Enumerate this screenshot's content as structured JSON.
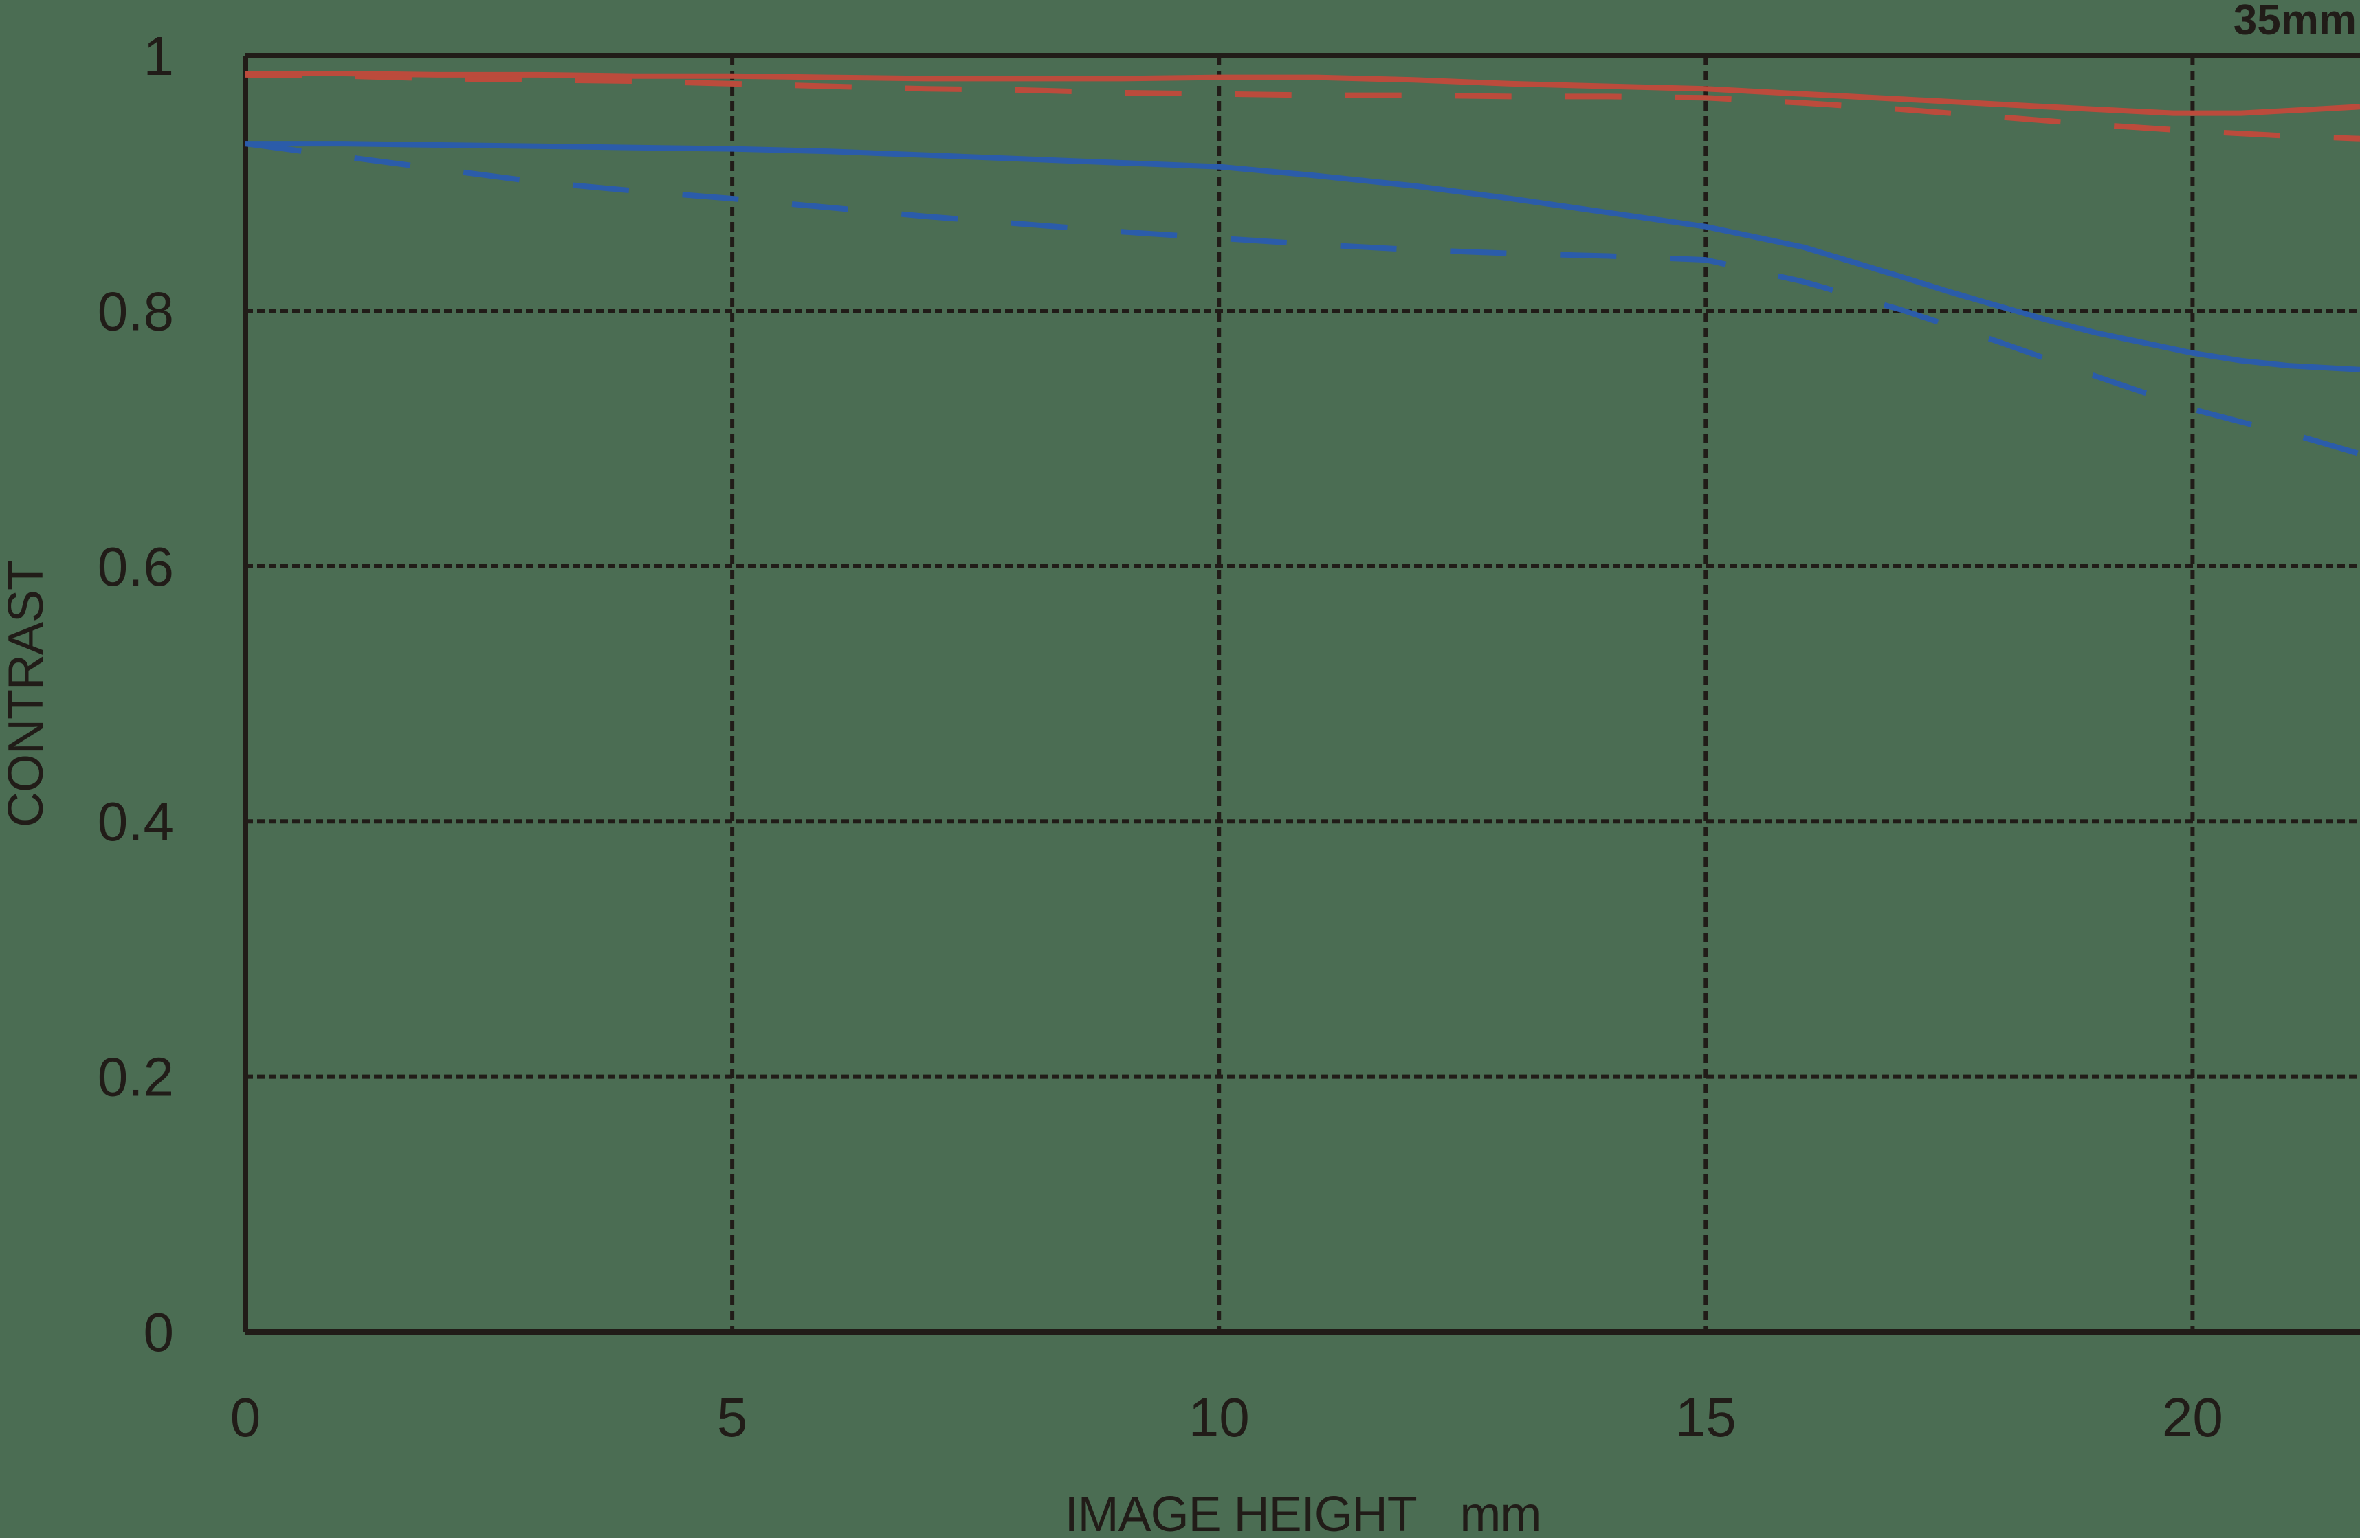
{
  "title": "35mm",
  "colors": {
    "background": "#4b6d53",
    "ink": "#211c18",
    "red": "#bc4b3c",
    "blue": "#2b5caa"
  },
  "chart_data": {
    "type": "line",
    "title": "35mm",
    "xlabel": "IMAGE HEIGHT",
    "xlabel_unit": "mm",
    "ylabel": "CONTRAST",
    "xlim": [
      0,
      21.72
    ],
    "ylim": [
      0,
      1
    ],
    "x_ticks": [
      0,
      5,
      10,
      15,
      20
    ],
    "x_tick_labels": [
      "0",
      "5",
      "10",
      "15",
      "20"
    ],
    "y_ticks": [
      0,
      0.2,
      0.4,
      0.6,
      0.8,
      1
    ],
    "y_tick_labels": [
      "0",
      "0.2",
      "0.4",
      "0.6",
      "0.8",
      "1"
    ],
    "grid": true,
    "legend_position": "none",
    "series": [
      {
        "name": "red-solid",
        "color": "#bc4b3c",
        "style": "solid",
        "points": [
          [
            0,
            0.986
          ],
          [
            1,
            0.986
          ],
          [
            2,
            0.985
          ],
          [
            3,
            0.985
          ],
          [
            4,
            0.984
          ],
          [
            5,
            0.984
          ],
          [
            6,
            0.983
          ],
          [
            7,
            0.982
          ],
          [
            8,
            0.982
          ],
          [
            9,
            0.982
          ],
          [
            10,
            0.983
          ],
          [
            11,
            0.983
          ],
          [
            12,
            0.981
          ],
          [
            13,
            0.978
          ],
          [
            14,
            0.976
          ],
          [
            15,
            0.974
          ],
          [
            16,
            0.97
          ],
          [
            17,
            0.966
          ],
          [
            18,
            0.962
          ],
          [
            19,
            0.958
          ],
          [
            19.8,
            0.955
          ],
          [
            20.5,
            0.955
          ],
          [
            21,
            0.957
          ],
          [
            21.72,
            0.96
          ]
        ]
      },
      {
        "name": "red-dashed",
        "color": "#bc4b3c",
        "style": "dashed",
        "points": [
          [
            0,
            0.985
          ],
          [
            1,
            0.984
          ],
          [
            2,
            0.982
          ],
          [
            3,
            0.981
          ],
          [
            4,
            0.98
          ],
          [
            5,
            0.978
          ],
          [
            6,
            0.976
          ],
          [
            7,
            0.974
          ],
          [
            8,
            0.973
          ],
          [
            9,
            0.971
          ],
          [
            10,
            0.97
          ],
          [
            11,
            0.969
          ],
          [
            12,
            0.969
          ],
          [
            13,
            0.968
          ],
          [
            14,
            0.968
          ],
          [
            15,
            0.967
          ],
          [
            16,
            0.963
          ],
          [
            17,
            0.958
          ],
          [
            18,
            0.952
          ],
          [
            19,
            0.946
          ],
          [
            20,
            0.941
          ],
          [
            21,
            0.937
          ],
          [
            21.72,
            0.935
          ]
        ]
      },
      {
        "name": "blue-solid",
        "color": "#2b5caa",
        "style": "solid",
        "points": [
          [
            0,
            0.931
          ],
          [
            1,
            0.931
          ],
          [
            2,
            0.93
          ],
          [
            3,
            0.929
          ],
          [
            4,
            0.928
          ],
          [
            5,
            0.927
          ],
          [
            6,
            0.925
          ],
          [
            7,
            0.922
          ],
          [
            8,
            0.919
          ],
          [
            9,
            0.916
          ],
          [
            10,
            0.913
          ],
          [
            11,
            0.906
          ],
          [
            12,
            0.898
          ],
          [
            13,
            0.888
          ],
          [
            14,
            0.877
          ],
          [
            15,
            0.866
          ],
          [
            16,
            0.85
          ],
          [
            17,
            0.827
          ],
          [
            17.5,
            0.815
          ],
          [
            18,
            0.804
          ],
          [
            18.5,
            0.793
          ],
          [
            19,
            0.783
          ],
          [
            19.5,
            0.775
          ],
          [
            20,
            0.767
          ],
          [
            20.5,
            0.761
          ],
          [
            21,
            0.757
          ],
          [
            21.72,
            0.754
          ]
        ]
      },
      {
        "name": "blue-dashed",
        "color": "#2b5caa",
        "style": "dashed",
        "points": [
          [
            0,
            0.931
          ],
          [
            1,
            0.921
          ],
          [
            2,
            0.911
          ],
          [
            3,
            0.901
          ],
          [
            4,
            0.894
          ],
          [
            5,
            0.888
          ],
          [
            6,
            0.881
          ],
          [
            7,
            0.874
          ],
          [
            8,
            0.868
          ],
          [
            9,
            0.862
          ],
          [
            10,
            0.857
          ],
          [
            11,
            0.852
          ],
          [
            12,
            0.848
          ],
          [
            13,
            0.845
          ],
          [
            14,
            0.843
          ],
          [
            15,
            0.84
          ],
          [
            16,
            0.823
          ],
          [
            17,
            0.801
          ],
          [
            18,
            0.776
          ],
          [
            19,
            0.749
          ],
          [
            20,
            0.723
          ],
          [
            20.6,
            0.711
          ],
          [
            21,
            0.704
          ],
          [
            21.72,
            0.688
          ]
        ]
      }
    ]
  }
}
